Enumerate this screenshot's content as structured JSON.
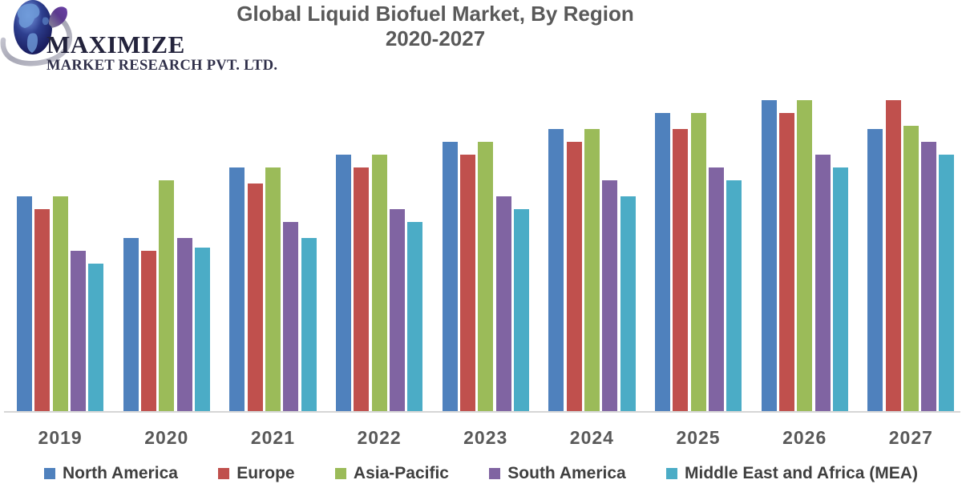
{
  "logo": {
    "name": "MAXIMIZE",
    "subtitle": "MARKET RESEARCH PVT. LTD.",
    "globe_colors": {
      "sphere_dark": "#141452",
      "sphere_mid": "#2e3f8f",
      "sphere_light": "#7d9fe8",
      "continent": "#6f9bd8",
      "swoosh_silver": "#b3b3be",
      "swoosh_purple": "#5c3a8e"
    }
  },
  "title": {
    "line1": "Global Liquid Biofuel Market, By Region",
    "line2": "2020-2027",
    "color": "#595959"
  },
  "chart_data": {
    "type": "bar",
    "title": "Global Liquid Biofuel Market, By Region 2020-2027",
    "categories": [
      "2019",
      "2020",
      "2021",
      "2022",
      "2023",
      "2024",
      "2025",
      "2026",
      "2027"
    ],
    "series": [
      {
        "name": "North America",
        "color": "#4F81BD",
        "values": [
          67,
          54,
          76,
          80,
          84,
          88,
          93,
          97,
          88
        ]
      },
      {
        "name": "Europe",
        "color": "#C0504D",
        "values": [
          63,
          50,
          71,
          76,
          80,
          84,
          88,
          93,
          97
        ]
      },
      {
        "name": "Asia-Pacific",
        "color": "#9BBB59",
        "values": [
          67,
          72,
          76,
          80,
          84,
          88,
          93,
          97,
          89
        ]
      },
      {
        "name": "South America",
        "color": "#8064A2",
        "values": [
          50,
          54,
          59,
          63,
          67,
          72,
          76,
          80,
          84
        ]
      },
      {
        "name": "Middle East and Africa (MEA)",
        "color": "#4BACC6",
        "values": [
          46,
          51,
          54,
          59,
          63,
          67,
          72,
          76,
          80
        ]
      }
    ],
    "xlabel": "",
    "ylabel": "",
    "ylim": [
      0,
      105
    ],
    "y_axis_labels_visible": false,
    "grid": false,
    "legend_position": "bottom",
    "axis_line_color": "#d6d6d6",
    "tick_label_color": "#595959"
  }
}
